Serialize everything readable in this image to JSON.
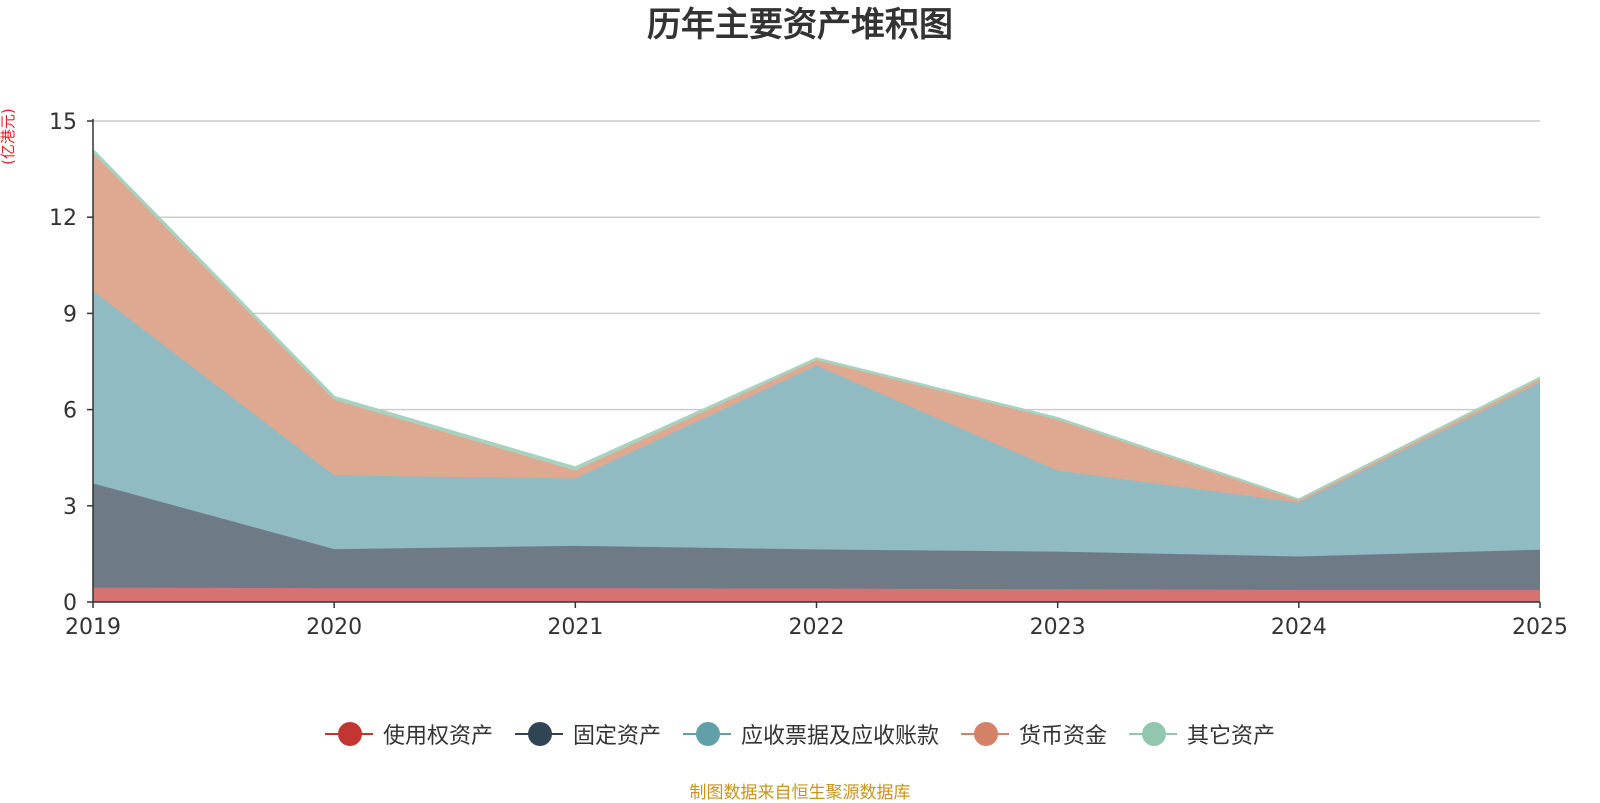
{
  "chart_data": {
    "type": "area",
    "stacked": true,
    "title": "历年主要资产堆积图",
    "unit_label": "(亿港元)",
    "xlabel": "",
    "ylabel": "(亿港元)",
    "categories": [
      "2019",
      "2020",
      "2021",
      "2022",
      "2023",
      "2024",
      "2025"
    ],
    "ylim": [
      0,
      15
    ],
    "yticks": [
      0,
      3,
      6,
      9,
      12,
      15
    ],
    "grid": true,
    "legend_position": "bottom",
    "series": [
      {
        "name": "使用权资产",
        "color": "#c23531",
        "fill": "#d47372",
        "values": [
          0.45,
          0.43,
          0.43,
          0.42,
          0.4,
          0.38,
          0.38
        ]
      },
      {
        "name": "固定资产",
        "color": "#2f4554",
        "fill": "#6e7b87",
        "values": [
          3.25,
          1.22,
          1.32,
          1.22,
          1.17,
          1.04,
          1.25
        ]
      },
      {
        "name": "应收票据及应收账款",
        "color": "#61a0a8",
        "fill": "#91bbc2",
        "values": [
          6.0,
          2.3,
          2.1,
          5.73,
          2.53,
          1.68,
          5.22
        ]
      },
      {
        "name": "货币资金",
        "color": "#d48265",
        "fill": "#dea891",
        "values": [
          4.3,
          2.35,
          0.25,
          0.17,
          1.58,
          0.06,
          0.1
        ]
      },
      {
        "name": "其它资产",
        "color": "#91c7ae",
        "fill": "#a8d2bf",
        "values": [
          0.1,
          0.1,
          0.1,
          0.06,
          0.06,
          0.04,
          0.05
        ]
      }
    ],
    "source": "制图数据来自恒生聚源数据库"
  }
}
